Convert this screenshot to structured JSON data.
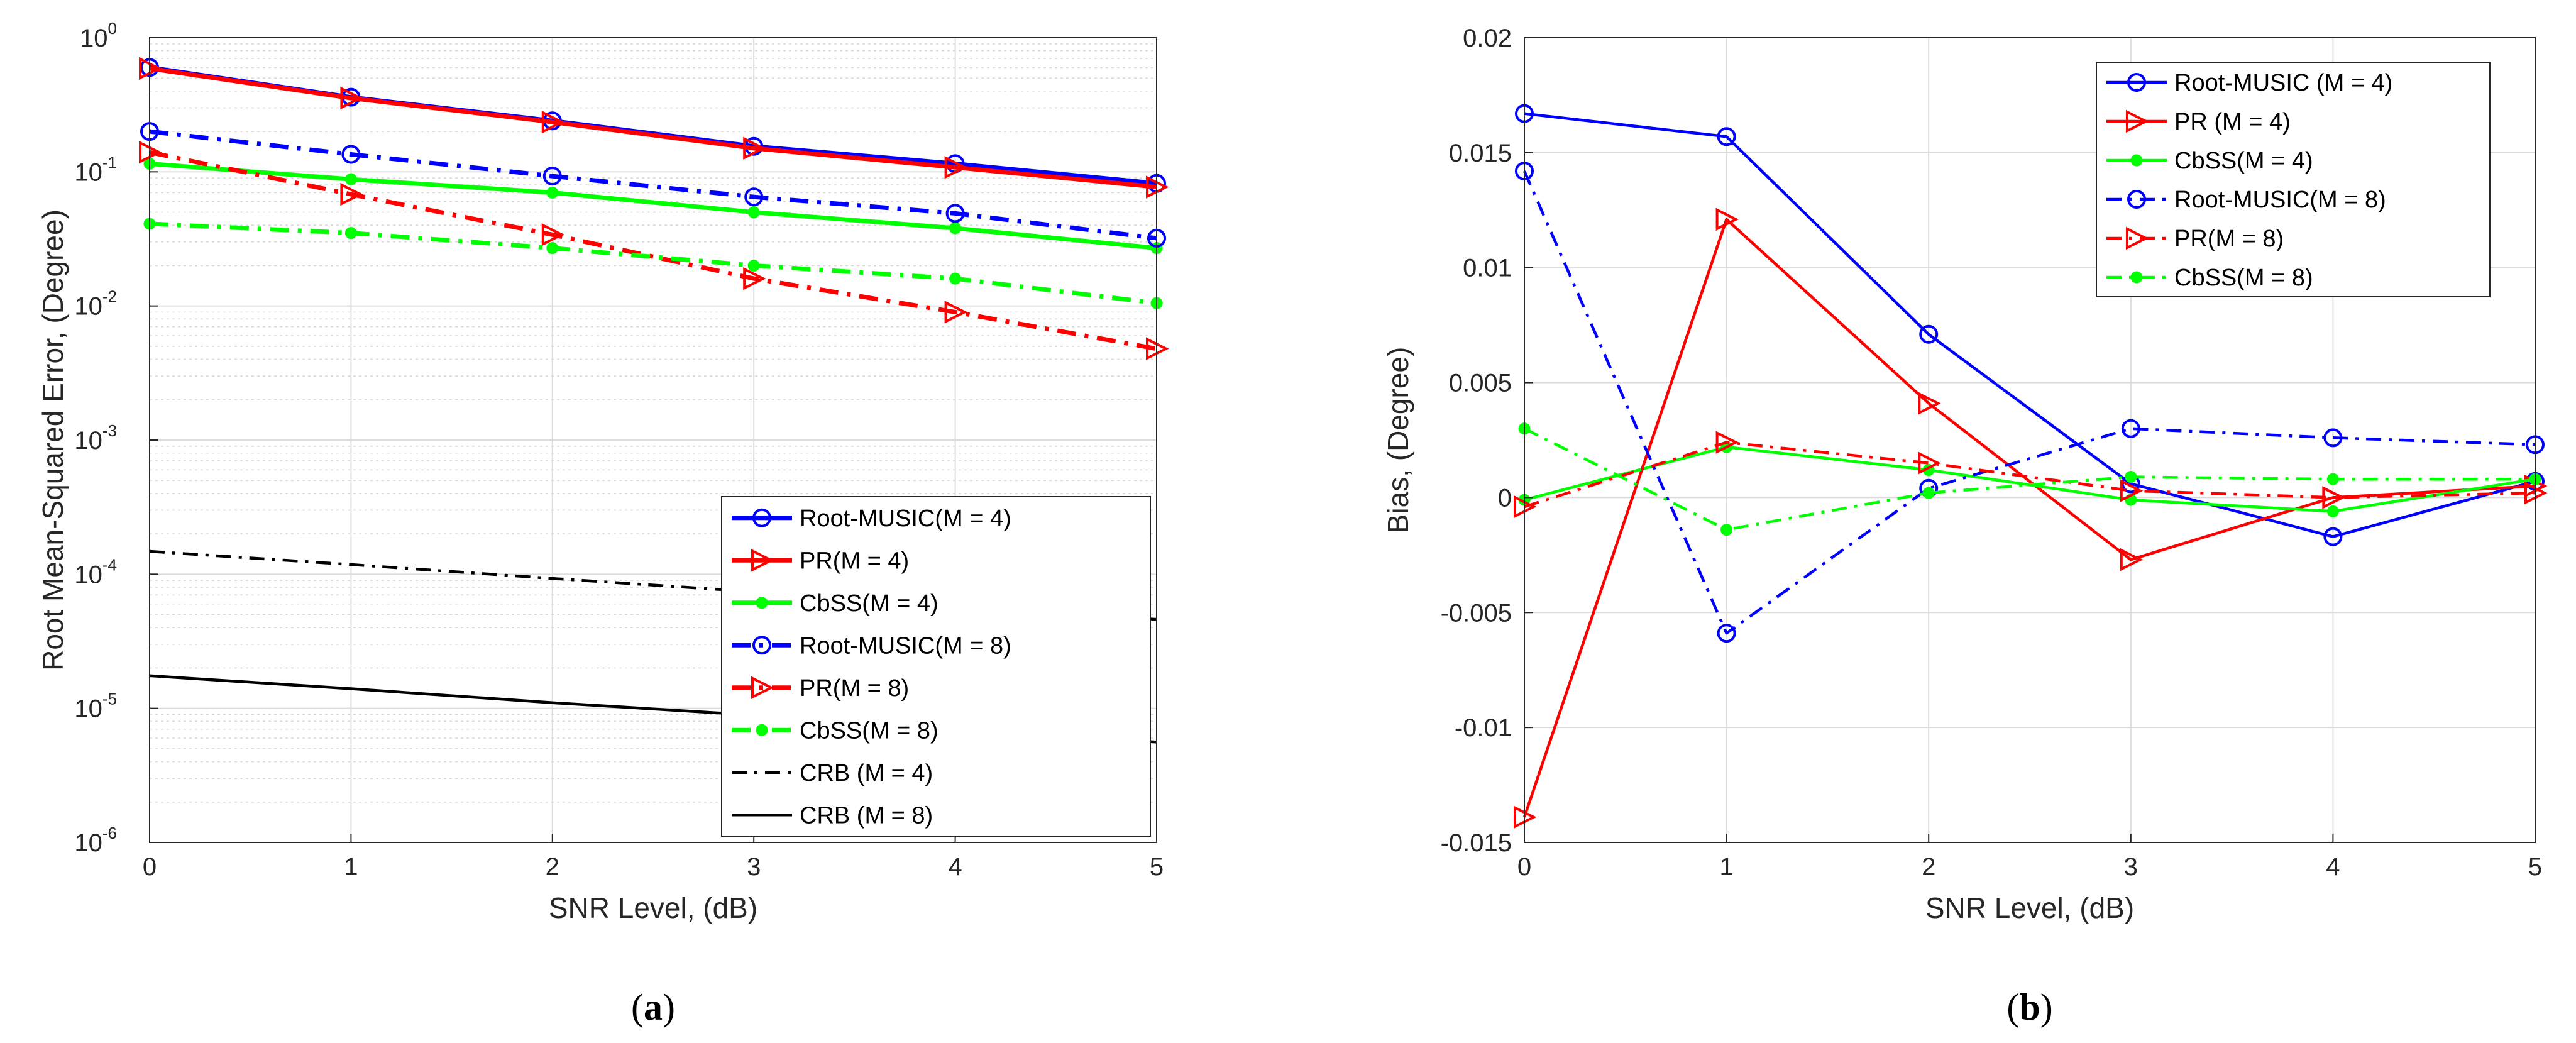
{
  "chart_data": [
    {
      "type": "line",
      "panel": "a",
      "caption": {
        "prefix": "(",
        "letter": "a",
        "suffix": ")"
      },
      "xlabel": "SNR Level, (dB)",
      "ylabel": "Root Mean-Squared Error, (Degree)",
      "yscale": "log",
      "xlim": [
        0,
        5
      ],
      "ylim": [
        1e-06,
        1
      ],
      "x": [
        0,
        1,
        2,
        3,
        4,
        5
      ],
      "xticks": [
        "0",
        "1",
        "2",
        "3",
        "4",
        "5"
      ],
      "yticks": [
        {
          "base": "10",
          "exp": "-6"
        },
        {
          "base": "10",
          "exp": "-5"
        },
        {
          "base": "10",
          "exp": "-4"
        },
        {
          "base": "10",
          "exp": "-3"
        },
        {
          "base": "10",
          "exp": "-2"
        },
        {
          "base": "10",
          "exp": "-1"
        },
        {
          "base": "10",
          "exp": "0"
        }
      ],
      "grid": true,
      "legend_position": "bottom-right",
      "series": [
        {
          "name": "Root-MUSIC(M = 4)",
          "color": "#0000ff",
          "dash": "solid",
          "marker": "circle",
          "width": "thick",
          "values": [
            0.6,
            0.36,
            0.24,
            0.155,
            0.115,
            0.082
          ]
        },
        {
          "name": "PR(M = 4)",
          "color": "#ff0000",
          "dash": "solid",
          "marker": "triangle-right",
          "width": "thick",
          "values": [
            0.59,
            0.355,
            0.235,
            0.15,
            0.108,
            0.077
          ]
        },
        {
          "name": "CbSS(M = 4)",
          "color": "#00ff00",
          "dash": "solid",
          "marker": "point",
          "width": "thick",
          "values": [
            0.115,
            0.088,
            0.07,
            0.05,
            0.038,
            0.027
          ]
        },
        {
          "name": "Root-MUSIC(M = 8)",
          "color": "#0000ff",
          "dash": "dashdot",
          "marker": "circle",
          "width": "thick",
          "values": [
            0.2,
            0.135,
            0.093,
            0.065,
            0.049,
            0.032
          ]
        },
        {
          "name": "PR(M = 8)",
          "color": "#ff0000",
          "dash": "dashdot",
          "marker": "triangle-right",
          "width": "thick",
          "values": [
            0.14,
            0.068,
            0.034,
            0.016,
            0.009,
            0.0048
          ]
        },
        {
          "name": "CbSS(M = 8)",
          "color": "#00ff00",
          "dash": "dashdot",
          "marker": "point",
          "width": "thick",
          "values": [
            0.041,
            0.035,
            0.027,
            0.02,
            0.016,
            0.0105
          ]
        },
        {
          "name": "CRB (M = 4)",
          "color": "#000000",
          "dash": "dashdot",
          "marker": "none",
          "width": "normal",
          "values": [
            0.000148,
            0.000118,
            9.3e-05,
            7.4e-05,
            5.9e-05,
            4.6e-05
          ]
        },
        {
          "name": "CRB (M = 8)",
          "color": "#000000",
          "dash": "solid",
          "marker": "none",
          "width": "normal",
          "values": [
            1.75e-05,
            1.4e-05,
            1.1e-05,
            8.9e-06,
            7.1e-06,
            5.6e-06
          ]
        }
      ]
    },
    {
      "type": "line",
      "panel": "b",
      "caption": {
        "prefix": "(",
        "letter": "b",
        "suffix": ")"
      },
      "xlabel": "SNR Level, (dB)",
      "ylabel": "Bias, (Degree)",
      "yscale": "linear",
      "xlim": [
        0,
        5
      ],
      "ylim": [
        -0.015,
        0.02
      ],
      "x": [
        0,
        1,
        2,
        3,
        4,
        5
      ],
      "xticks": [
        "0",
        "1",
        "2",
        "3",
        "4",
        "5"
      ],
      "yticks": [
        "-0.015",
        "-0.01",
        "-0.005",
        "0",
        "0.005",
        "0.01",
        "0.015",
        "0.02"
      ],
      "grid": true,
      "legend_position": "top-right",
      "series": [
        {
          "name": "Root-MUSIC (M = 4)",
          "color": "#0000ff",
          "dash": "solid",
          "marker": "circle",
          "width": "normal",
          "values": [
            0.0167,
            0.0157,
            0.0071,
            0.0006,
            -0.0017,
            0.0007
          ]
        },
        {
          "name": "PR (M = 4)",
          "color": "#ff0000",
          "dash": "solid",
          "marker": "triangle-right",
          "width": "normal",
          "values": [
            -0.0139,
            0.0121,
            0.0041,
            -0.0027,
            0.0,
            0.0005
          ]
        },
        {
          "name": "CbSS(M = 4)",
          "color": "#00ff00",
          "dash": "solid",
          "marker": "point",
          "width": "normal",
          "values": [
            -0.0001,
            0.0022,
            0.0012,
            -0.0001,
            -0.0006,
            0.0008
          ]
        },
        {
          "name": "Root-MUSIC(M = 8)",
          "color": "#0000ff",
          "dash": "dashdot",
          "marker": "circle",
          "width": "normal",
          "values": [
            0.0142,
            -0.0059,
            0.0004,
            0.003,
            0.0026,
            0.0023
          ]
        },
        {
          "name": "PR(M = 8)",
          "color": "#ff0000",
          "dash": "dashdot",
          "marker": "triangle-right",
          "width": "normal",
          "values": [
            -0.0004,
            0.0024,
            0.0015,
            0.0003,
            0.0,
            0.0002
          ]
        },
        {
          "name": "CbSS(M = 8)",
          "color": "#00ff00",
          "dash": "dashdot",
          "marker": "point",
          "width": "normal",
          "values": [
            0.003,
            -0.0014,
            0.0002,
            0.0009,
            0.0008,
            0.0008
          ]
        }
      ]
    }
  ]
}
